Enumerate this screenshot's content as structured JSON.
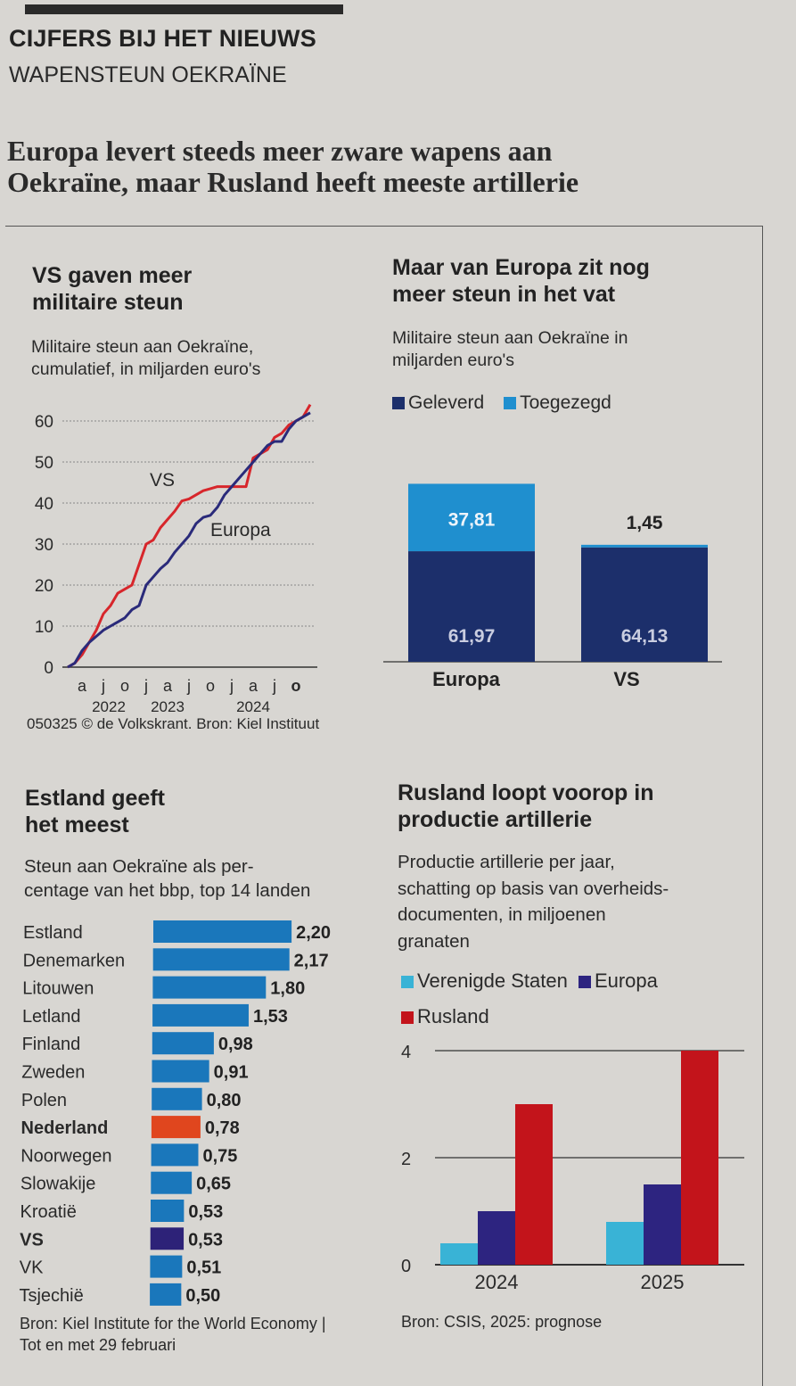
{
  "header": {
    "kicker": "CIJFERS BIJ HET NIEUWS",
    "subject": "WAPENSTEUN OEKRAÏNE",
    "headline_1": "Europa levert steeds meer zware wapens aan",
    "headline_2": "Oekraïne, maar Rusland heeft meeste artillerie"
  },
  "panels": {
    "p1": {
      "title_1": "VS gaven meer",
      "title_2": "militaire steun",
      "sub_1": "Militaire steun aan Oekraïne,",
      "sub_2": "cumulatief, in miljarden euro's",
      "credit": "050325 © de Volkskrant. Bron: Kiel Instituut"
    },
    "p2": {
      "title_1": "Maar van Europa zit nog",
      "title_2": "meer steun in het vat",
      "sub_1": "Militaire steun aan Oekraïne in",
      "sub_2": "miljarden euro's"
    },
    "p3": {
      "title_1": "Estland geeft",
      "title_2": "het meest",
      "sub_1": "Steun aan Oekraïne als per-",
      "sub_2": "centage van het bbp, top 14 landen",
      "source_1": "Bron: Kiel Institute for the World Economy |",
      "source_2": "Tot en met 29 februari"
    },
    "p4": {
      "title_1": "Rusland loopt voorop in",
      "title_2": "productie artillerie",
      "sub_1": "Productie artillerie per jaar,",
      "sub_2": "schatting op basis van overheids-",
      "sub_3": "documenten, in miljoenen",
      "sub_4": "granaten",
      "source": "Bron: CSIS, 2025: prognose"
    }
  },
  "chart_data": [
    {
      "type": "line",
      "title": "VS gaven meer militaire steun",
      "ylim": [
        0,
        60
      ],
      "yticks": [
        "0",
        "10",
        "20",
        "30",
        "40",
        "50",
        "60"
      ],
      "xticks": [
        "a",
        "j",
        "o",
        "j",
        "a",
        "j",
        "o",
        "j",
        "a",
        "j",
        "o"
      ],
      "xyears": [
        "2022",
        "2023",
        "2024"
      ],
      "grid": true,
      "x": [
        "2022-02",
        "2022-03",
        "2022-04",
        "2022-05",
        "2022-06",
        "2022-07",
        "2022-08",
        "2022-09",
        "2022-10",
        "2022-11",
        "2022-12",
        "2023-01",
        "2023-02",
        "2023-03",
        "2023-04",
        "2023-05",
        "2023-06",
        "2023-07",
        "2023-08",
        "2023-09",
        "2023-10",
        "2023-11",
        "2023-12",
        "2024-01",
        "2024-02",
        "2024-03",
        "2024-04",
        "2024-05",
        "2024-06",
        "2024-07",
        "2024-08",
        "2024-09",
        "2024-10",
        "2024-11",
        "2024-12"
      ],
      "series": [
        {
          "name": "VS",
          "color": "#d7262b",
          "values": [
            0,
            1,
            3,
            6,
            9,
            13,
            15,
            18,
            19,
            20,
            25,
            30,
            31,
            34,
            36,
            38,
            40.5,
            41,
            42,
            43,
            43.5,
            44,
            44,
            44,
            44,
            44,
            51,
            52,
            53,
            56,
            57,
            59,
            60,
            61,
            64
          ]
        },
        {
          "name": "Europa",
          "color": "#2a2a7a",
          "values": [
            0,
            1,
            4,
            6,
            7.5,
            9,
            10,
            11,
            12,
            14,
            15,
            20,
            22,
            24,
            25.5,
            28,
            30,
            32,
            35,
            36.5,
            37,
            39,
            42,
            44,
            46,
            48,
            50,
            52,
            54,
            55,
            55,
            58,
            60,
            61,
            62
          ]
        }
      ]
    },
    {
      "type": "bar",
      "stacked": true,
      "categories": [
        "Europa",
        "VS"
      ],
      "legend": [
        "Geleverd",
        "Toegezegd"
      ],
      "series": [
        {
          "name": "Geleverd",
          "color": "#1c2f6b",
          "values": [
            61.97,
            64.13
          ],
          "labels": [
            "61,97",
            "64,13"
          ]
        },
        {
          "name": "Toegezegd",
          "color": "#1f8fcf",
          "values": [
            37.81,
            1.45
          ],
          "labels": [
            "37,81",
            "1,45"
          ]
        }
      ]
    },
    {
      "type": "bar",
      "orientation": "horizontal",
      "categories": [
        "Estland",
        "Denemarken",
        "Litouwen",
        "Letland",
        "Finland",
        "Zweden",
        "Polen",
        "Nederland",
        "Noorwegen",
        "Slowakije",
        "Kroatië",
        "VS",
        "VK",
        "Tsjechië"
      ],
      "values": [
        2.2,
        2.17,
        1.8,
        1.53,
        0.98,
        0.91,
        0.8,
        0.78,
        0.75,
        0.65,
        0.53,
        0.53,
        0.51,
        0.5
      ],
      "labels": [
        "2,20",
        "2,17",
        "1,80",
        "1,53",
        "0,98",
        "0,91",
        "0,80",
        "0,78",
        "0,75",
        "0,65",
        "0,53",
        "0,53",
        "0,51",
        "0,50"
      ],
      "highlight": {
        "Nederland": "#e0461e",
        "VS": "#2d2278"
      },
      "color": "#1a77bb"
    },
    {
      "type": "bar",
      "categories": [
        "2024",
        "2025"
      ],
      "ylim": [
        0,
        4
      ],
      "yticks": [
        "0",
        "2",
        "4"
      ],
      "series": [
        {
          "name": "Verenigde Staten",
          "color": "#39b3d6",
          "values": [
            0.4,
            0.8
          ]
        },
        {
          "name": "Europa",
          "color": "#2d2480",
          "values": [
            1.0,
            1.5
          ]
        },
        {
          "name": "Rusland",
          "color": "#c3141b",
          "values": [
            3.0,
            4.0
          ]
        }
      ]
    }
  ]
}
